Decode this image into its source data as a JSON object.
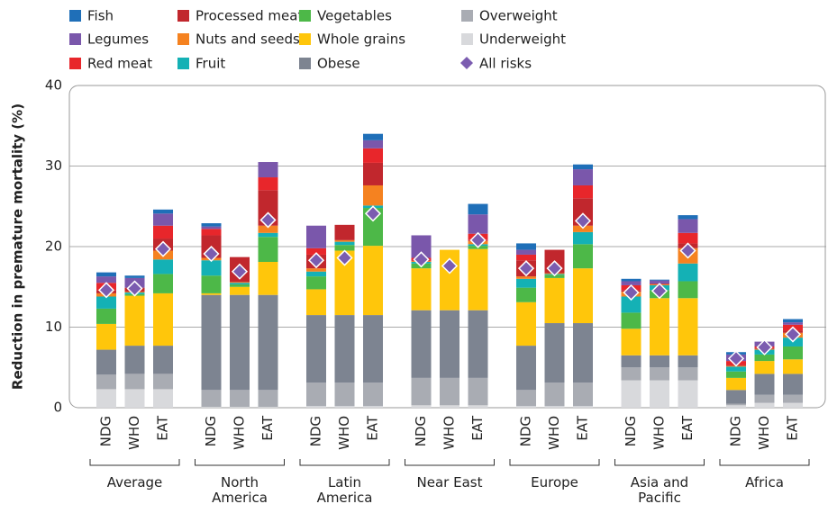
{
  "chart_data": {
    "type": "bar",
    "stacked": true,
    "y_label": "Reduction in premature mortality (%)",
    "ylim": [
      0,
      40
    ],
    "yticks": [
      0,
      10,
      20,
      30,
      40
    ],
    "grid": true,
    "groups": [
      {
        "name": "Average",
        "categories": [
          "NDG",
          "WHO",
          "EAT"
        ]
      },
      {
        "name": "North America",
        "categories": [
          "NDG",
          "WHO",
          "EAT"
        ]
      },
      {
        "name": "Latin America",
        "categories": [
          "NDG",
          "WHO",
          "EAT"
        ]
      },
      {
        "name": "Near East",
        "categories": [
          "NDG",
          "WHO",
          "EAT"
        ]
      },
      {
        "name": "Europe",
        "categories": [
          "NDG",
          "WHO",
          "EAT"
        ]
      },
      {
        "name": "Asia and Pacific",
        "categories": [
          "NDG",
          "WHO",
          "EAT"
        ]
      },
      {
        "name": "Africa",
        "categories": [
          "NDG",
          "WHO",
          "EAT"
        ]
      }
    ],
    "series": [
      {
        "name": "Fish",
        "color": "#1f6fb8",
        "values": [
          0.5,
          0.3,
          0.5,
          0.4,
          0,
          0,
          0,
          0,
          0.8,
          0,
          0,
          1.3,
          0.8,
          0,
          0.6,
          0.3,
          0.1,
          0.5,
          0.3,
          0,
          0.4
        ]
      },
      {
        "name": "Legumes",
        "color": "#7a57ab",
        "values": [
          0.8,
          1.2,
          1.5,
          0.3,
          0,
          1.9,
          2.8,
          0,
          1.0,
          2.8,
          0,
          2.4,
          0.6,
          0,
          2.0,
          0.5,
          0.4,
          1.7,
          0.8,
          0.6,
          0.3
        ]
      },
      {
        "name": "Red meat",
        "color": "#e8262b",
        "values": [
          0.9,
          0,
          1.6,
          0.8,
          0,
          1.6,
          0.8,
          0,
          1.8,
          0.3,
          0,
          0.8,
          0.7,
          0,
          1.6,
          0.6,
          0,
          1.3,
          0.5,
          0.2,
          0.7
        ]
      },
      {
        "name": "Processed meat",
        "color": "#c1272d",
        "values": [
          0.4,
          0.5,
          1.5,
          2.8,
          3.1,
          4.4,
          1.7,
          1.9,
          2.8,
          0.1,
          0,
          0.1,
          2.0,
          2.9,
          3.4,
          0.2,
          0.1,
          0.6,
          0.1,
          0.1,
          0.3
        ]
      },
      {
        "name": "Nuts and seeds",
        "color": "#f58220",
        "values": [
          0.4,
          0.1,
          1.1,
          0.3,
          0.1,
          0.9,
          0.4,
          0.2,
          2.5,
          0.1,
          0,
          0.4,
          0.3,
          0.1,
          0.8,
          0.6,
          0.1,
          1.9,
          0.1,
          0.1,
          0.6
        ]
      },
      {
        "name": "Fruit",
        "color": "#14b1b5",
        "values": [
          1.5,
          0.2,
          1.8,
          1.9,
          0.2,
          0.5,
          0.6,
          0.4,
          0.3,
          0.2,
          0,
          0.2,
          1.1,
          0.1,
          1.5,
          2.0,
          0.6,
          2.2,
          0.6,
          0.6,
          1.1
        ]
      },
      {
        "name": "Vegetables",
        "color": "#4db848",
        "values": [
          1.9,
          0.2,
          2.4,
          2.2,
          0.3,
          3.1,
          1.6,
          0.7,
          4.7,
          0.6,
          0,
          0.4,
          1.8,
          0.4,
          3.0,
          2.0,
          1.0,
          2.1,
          0.8,
          0.8,
          1.6
        ]
      },
      {
        "name": "Whole grains",
        "color": "#ffc60b",
        "values": [
          3.2,
          6.2,
          6.5,
          0.2,
          1.0,
          4.1,
          3.2,
          8.0,
          8.6,
          5.2,
          7.5,
          7.6,
          5.4,
          5.6,
          6.8,
          3.3,
          7.1,
          7.1,
          1.5,
          1.6,
          1.8
        ]
      },
      {
        "name": "Obese",
        "color": "#7d8491",
        "values": [
          3.1,
          3.5,
          3.5,
          11.8,
          11.8,
          11.8,
          8.4,
          8.4,
          8.4,
          8.4,
          8.4,
          8.4,
          5.5,
          7.4,
          7.4,
          1.5,
          1.5,
          1.5,
          1.7,
          2.6,
          2.6
        ]
      },
      {
        "name": "Overweight",
        "color": "#a9acb3",
        "values": [
          1.8,
          1.9,
          1.9,
          2.1,
          2.1,
          2.1,
          2.9,
          2.9,
          2.9,
          3.4,
          3.4,
          3.4,
          2.0,
          2.9,
          2.9,
          1.6,
          1.6,
          1.6,
          0.2,
          1.0,
          1.0
        ]
      },
      {
        "name": "Underweight",
        "color": "#d8d9dc",
        "values": [
          2.3,
          2.3,
          2.3,
          0.1,
          0.1,
          0.1,
          0.2,
          0.2,
          0.2,
          0.3,
          0.3,
          0.3,
          0.2,
          0.2,
          0.2,
          3.4,
          3.4,
          3.4,
          0.3,
          0.6,
          0.6
        ]
      },
      {
        "name": "All risks",
        "type": "scatter",
        "marker": "diamond",
        "color": "#7b5cb0",
        "values": [
          14.6,
          14.8,
          19.7,
          19.1,
          16.9,
          23.3,
          18.3,
          18.6,
          24.1,
          18.4,
          17.6,
          20.8,
          17.3,
          17.3,
          23.2,
          14.3,
          14.5,
          19.5,
          6.1,
          7.5,
          9.1
        ]
      }
    ]
  }
}
